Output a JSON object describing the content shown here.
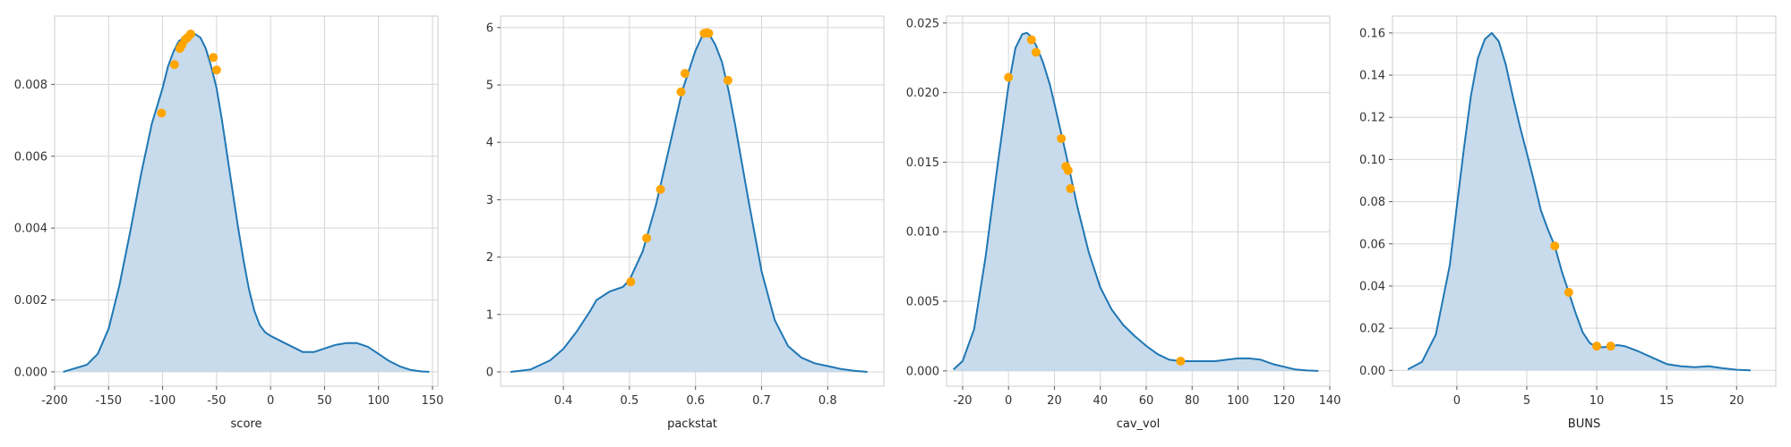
{
  "figure": {
    "colors": {
      "line": "#1f77b4",
      "fill": "#c4d9eb",
      "point": "#ffa500",
      "grid": "#d5d5d5",
      "frame": "#cccccc"
    }
  },
  "chart_data": [
    {
      "type": "area",
      "xlabel": "score",
      "ylabel": "",
      "xlim": [
        -200,
        155
      ],
      "ylim": [
        -0.0004,
        0.0099
      ],
      "grid": true,
      "x_ticks": [
        -200,
        -150,
        -100,
        -50,
        0,
        50,
        100,
        150
      ],
      "x_tick_labels": [
        "-200",
        "-150",
        "-100",
        "-50",
        "0",
        "50",
        "100",
        "150"
      ],
      "y_ticks": [
        0,
        0.002,
        0.004,
        0.006,
        0.008
      ],
      "y_tick_labels": [
        "0.000",
        "0.002",
        "0.004",
        "0.006",
        "0.008"
      ],
      "density_curve": {
        "x": [
          -192,
          -170,
          -160,
          -150,
          -140,
          -130,
          -120,
          -110,
          -100,
          -95,
          -90,
          -85,
          -80,
          -75,
          -70,
          -65,
          -60,
          -55,
          -50,
          -45,
          -40,
          -35,
          -30,
          -25,
          -20,
          -15,
          -10,
          -5,
          0,
          10,
          20,
          30,
          40,
          50,
          60,
          70,
          80,
          90,
          100,
          110,
          120,
          130,
          140,
          147
        ],
        "y": [
          0.0,
          0.0002,
          0.0005,
          0.0012,
          0.0024,
          0.0039,
          0.0055,
          0.0069,
          0.0079,
          0.0085,
          0.0089,
          0.0092,
          0.0093,
          0.0094,
          0.0094,
          0.0093,
          0.009,
          0.0085,
          0.0079,
          0.007,
          0.006,
          0.005,
          0.004,
          0.0031,
          0.0023,
          0.0017,
          0.0013,
          0.0011,
          0.001,
          0.00085,
          0.0007,
          0.00055,
          0.00055,
          0.00065,
          0.00075,
          0.0008,
          0.0008,
          0.0007,
          0.0005,
          0.0003,
          0.00015,
          5e-05,
          1e-05,
          0.0
        ]
      },
      "points": {
        "x": [
          -101,
          -89,
          -84,
          -82,
          -79,
          -77,
          -74,
          -53,
          -50
        ],
        "y": [
          0.0072,
          0.00855,
          0.009,
          0.0091,
          0.00925,
          0.0093,
          0.0094,
          0.00875,
          0.0084
        ]
      }
    },
    {
      "type": "area",
      "xlabel": "packstat",
      "ylabel": "",
      "xlim": [
        0.305,
        0.885
      ],
      "ylim": [
        -0.25,
        6.2
      ],
      "grid": true,
      "x_ticks": [
        0.3,
        0.4,
        0.5,
        0.6,
        0.7,
        0.8
      ],
      "x_tick_labels": [
        "0.3",
        "0.4",
        "0.5",
        "0.6",
        "0.7",
        "0.8"
      ],
      "y_ticks": [
        0,
        1,
        2,
        3,
        4,
        5,
        6
      ],
      "y_tick_labels": [
        "0",
        "1",
        "2",
        "3",
        "4",
        "5",
        "6"
      ],
      "density_curve": {
        "x": [
          0.32,
          0.35,
          0.38,
          0.4,
          0.42,
          0.44,
          0.45,
          0.47,
          0.49,
          0.5,
          0.52,
          0.54,
          0.56,
          0.58,
          0.6,
          0.61,
          0.62,
          0.63,
          0.64,
          0.65,
          0.66,
          0.68,
          0.7,
          0.72,
          0.74,
          0.76,
          0.78,
          0.8,
          0.82,
          0.84,
          0.86
        ],
        "y": [
          0.0,
          0.04,
          0.2,
          0.4,
          0.7,
          1.05,
          1.25,
          1.4,
          1.48,
          1.6,
          2.1,
          2.9,
          3.9,
          4.9,
          5.6,
          5.85,
          5.9,
          5.7,
          5.4,
          4.9,
          4.3,
          3.0,
          1.75,
          0.9,
          0.45,
          0.25,
          0.15,
          0.1,
          0.05,
          0.02,
          0.0
        ]
      },
      "points": {
        "x": [
          0.502,
          0.526,
          0.547,
          0.578,
          0.584,
          0.613,
          0.617,
          0.62,
          0.649
        ],
        "y": [
          1.57,
          2.33,
          3.18,
          4.88,
          5.2,
          5.9,
          5.91,
          5.9,
          5.08
        ]
      }
    },
    {
      "type": "area",
      "xlabel": "cav_vol",
      "ylabel": "",
      "xlim": [
        -27,
        140
      ],
      "ylim": [
        -0.0011,
        0.0255
      ],
      "grid": true,
      "x_ticks": [
        -20,
        0,
        20,
        40,
        60,
        80,
        100,
        120,
        140
      ],
      "x_tick_labels": [
        "-20",
        "0",
        "20",
        "40",
        "60",
        "80",
        "100",
        "120",
        "140"
      ],
      "y_ticks": [
        0,
        0.005,
        0.01,
        0.015,
        0.02,
        0.025
      ],
      "y_tick_labels": [
        "0.000",
        "0.005",
        "0.010",
        "0.015",
        "0.020",
        "0.025"
      ],
      "density_curve": {
        "x": [
          -24,
          -20,
          -15,
          -10,
          -5,
          0,
          3,
          6,
          8,
          10,
          12,
          15,
          18,
          20,
          25,
          30,
          35,
          40,
          45,
          50,
          55,
          60,
          65,
          70,
          75,
          80,
          85,
          90,
          95,
          100,
          105,
          110,
          115,
          120,
          125,
          130,
          135
        ],
        "y": [
          0.0001,
          0.0007,
          0.003,
          0.0082,
          0.0145,
          0.0205,
          0.0232,
          0.0242,
          0.0243,
          0.024,
          0.0234,
          0.0222,
          0.0206,
          0.0192,
          0.0156,
          0.0118,
          0.0085,
          0.006,
          0.0044,
          0.0033,
          0.0025,
          0.0018,
          0.0012,
          0.0008,
          0.0007,
          0.0007,
          0.0007,
          0.0007,
          0.0008,
          0.0009,
          0.0009,
          0.0008,
          0.0005,
          0.0003,
          0.0001,
          3e-05,
          0.0
        ]
      },
      "points": {
        "x": [
          0,
          10,
          12,
          23,
          25,
          26,
          27,
          75
        ],
        "y": [
          0.0211,
          0.0238,
          0.0229,
          0.0167,
          0.0147,
          0.0144,
          0.0131,
          0.0007
        ]
      }
    },
    {
      "type": "area",
      "xlabel": "BUNS",
      "ylabel": "",
      "xlim": [
        -4.6,
        22.8
      ],
      "ylim": [
        -0.0075,
        0.168
      ],
      "grid": true,
      "x_ticks": [
        0,
        5,
        10,
        15,
        20
      ],
      "x_tick_labels": [
        "0",
        "5",
        "10",
        "15",
        "20"
      ],
      "y_ticks": [
        0,
        0.02,
        0.04,
        0.06,
        0.08,
        0.1,
        0.12,
        0.14,
        0.16
      ],
      "y_tick_labels": [
        "0.00",
        "0.02",
        "0.04",
        "0.06",
        "0.08",
        "0.10",
        "0.12",
        "0.14",
        "0.16"
      ],
      "density_curve": {
        "x": [
          -3.5,
          -2.5,
          -1.5,
          -0.5,
          0,
          0.5,
          1,
          1.5,
          2,
          2.5,
          3,
          3.5,
          4,
          4.5,
          5,
          5.5,
          6,
          6.5,
          7,
          7.5,
          8,
          8.5,
          9,
          9.5,
          10,
          10.5,
          11,
          11.5,
          12,
          13,
          14,
          15,
          16,
          17,
          18,
          19,
          20,
          21
        ],
        "y": [
          0.0005,
          0.004,
          0.017,
          0.05,
          0.078,
          0.105,
          0.13,
          0.148,
          0.157,
          0.16,
          0.156,
          0.145,
          0.13,
          0.116,
          0.103,
          0.09,
          0.076,
          0.067,
          0.059,
          0.047,
          0.037,
          0.027,
          0.018,
          0.013,
          0.011,
          0.011,
          0.0115,
          0.012,
          0.0115,
          0.009,
          0.006,
          0.003,
          0.002,
          0.0015,
          0.002,
          0.001,
          0.0003,
          0.0
        ]
      },
      "points": {
        "x": [
          7,
          8,
          10,
          11
        ],
        "y": [
          0.059,
          0.037,
          0.0115,
          0.0115
        ]
      }
    }
  ]
}
